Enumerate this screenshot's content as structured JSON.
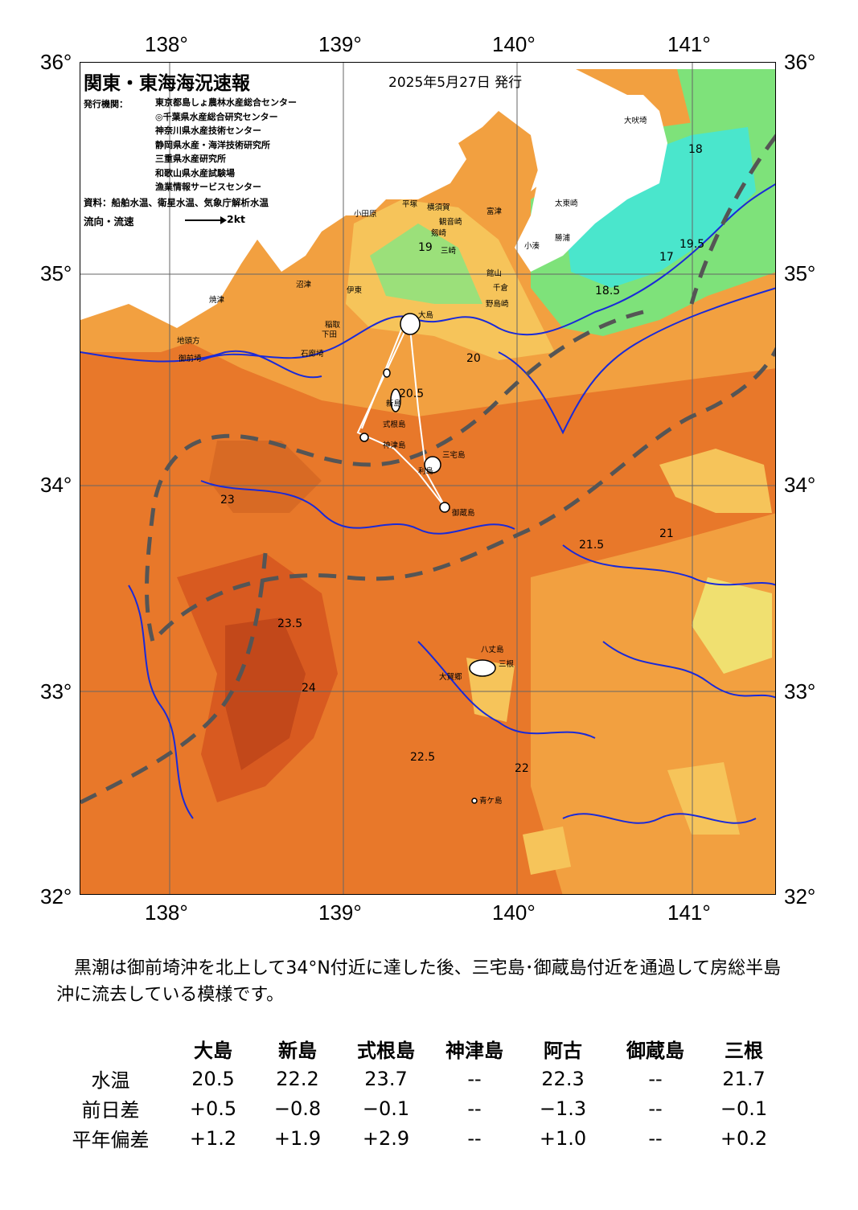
{
  "map": {
    "title": "関東・東海海況速報",
    "issue_date": "2025年5月27日 発行",
    "agency_label": "発行機関：",
    "agencies": [
      "東京都島しょ農林水産総合センター",
      "◎千葉県水産総合研究センター",
      "神奈川県水産技術センター",
      "静岡県水産・海洋技術研究所",
      "三重県水産研究所",
      "和歌山県水産試験場",
      "漁業情報サービスセンター"
    ],
    "source": "資料：船舶水温、衛星水温、気象庁解析水温",
    "flow_label": "流向・流速",
    "flow_scale": "2kt",
    "lon_labels": [
      "138°",
      "139°",
      "140°",
      "141°"
    ],
    "lat_labels": [
      "36°",
      "35°",
      "34°",
      "33°",
      "32°"
    ],
    "places": [
      {
        "name": "大吠埼"
      },
      {
        "name": "太東崎"
      },
      {
        "name": "富津"
      },
      {
        "name": "勝浦"
      },
      {
        "name": "小湊"
      },
      {
        "name": "館山"
      },
      {
        "name": "千倉"
      },
      {
        "name": "野島崎"
      },
      {
        "name": "平塚"
      },
      {
        "name": "横須賀"
      },
      {
        "name": "観音崎"
      },
      {
        "name": "剱崎"
      },
      {
        "name": "三崎"
      },
      {
        "name": "小田原"
      },
      {
        "name": "伊東"
      },
      {
        "name": "稲取"
      },
      {
        "name": "下田"
      },
      {
        "name": "石廊埼"
      },
      {
        "name": "沼津"
      },
      {
        "name": "焼津"
      },
      {
        "name": "地頭方"
      },
      {
        "name": "御前埼"
      },
      {
        "name": "式根島"
      },
      {
        "name": "神津島"
      },
      {
        "name": "三宅島"
      },
      {
        "name": "御蔵島"
      },
      {
        "name": "八丈島"
      },
      {
        "name": "三根"
      },
      {
        "name": "大賀郷"
      },
      {
        "name": "青ケ島"
      },
      {
        "name": "新島"
      },
      {
        "name": "大島"
      },
      {
        "name": "利島"
      }
    ],
    "isotherm_labels": [
      "17",
      "18",
      "18.5",
      "19",
      "19.5",
      "20",
      "20.5",
      "21",
      "21.5",
      "22",
      "22.5",
      "23",
      "23.5",
      "24"
    ],
    "colors": {
      "warm_deep": "#c2481a",
      "warm": "#e8782a",
      "warm_light": "#f2a040",
      "mild": "#f6c45a",
      "yellow": "#f0e070",
      "green": "#7ee27a",
      "cyan": "#4ae6cc",
      "kuroshio_axis": "#555555",
      "isotherm_blue": "#1a2ad8"
    }
  },
  "comment": "黒潮は御前埼沖を北上して34°N付近に達した後、三宅島･御蔵島付近を通過して房総半島沖に流去している模様です。",
  "table": {
    "columns": [
      "大島",
      "新島",
      "式根島",
      "神津島",
      "阿古",
      "御蔵島",
      "三根"
    ],
    "rows": [
      {
        "label": "水温",
        "values": [
          "20.5",
          "22.2",
          "23.7",
          "--",
          "22.3",
          "--",
          "21.7"
        ]
      },
      {
        "label": "前日差",
        "values": [
          "+0.5",
          "−0.8",
          "−0.1",
          "--",
          "−1.3",
          "--",
          "−0.1"
        ]
      },
      {
        "label": "平年偏差",
        "values": [
          "+1.2",
          "+1.9",
          "+2.9",
          "--",
          "+1.0",
          "--",
          "+0.2"
        ]
      }
    ]
  }
}
